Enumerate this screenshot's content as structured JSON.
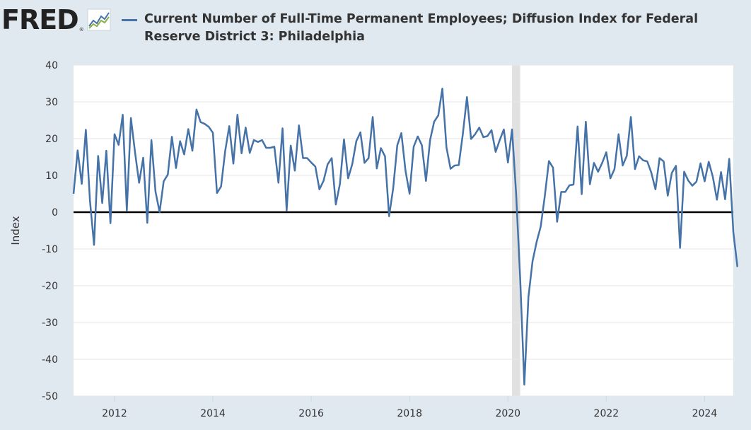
{
  "header": {
    "logo_text": "FRED",
    "logo_mark": "®",
    "logo_icon": "trend-chart-icon",
    "series_title": "Current Number of Full-Time Permanent Employees; Diffusion Index for Federal Reserve District 3: Philadelphia"
  },
  "colors": {
    "background": "#e1e9f0",
    "plot": "#ffffff",
    "series": "#4572a7",
    "recession": "#e1e1e1",
    "zero_line": "#000000"
  },
  "chart_data": {
    "type": "line",
    "title": "Current Number of Full-Time Permanent Employees; Diffusion Index for Federal Reserve District 3: Philadelphia",
    "xlabel": "",
    "ylabel": "Index",
    "ylim": [
      -50,
      40
    ],
    "yticks": [
      40,
      30,
      20,
      10,
      0,
      -10,
      -20,
      -30,
      -40,
      -50
    ],
    "xlim": [
      "2011-03",
      "2024-08"
    ],
    "xticks": [
      "2012",
      "2014",
      "2016",
      "2018",
      "2020",
      "2022",
      "2024"
    ],
    "grid": "horizontal",
    "zero_line": true,
    "recession_shading": [
      {
        "start": "2020-02",
        "end": "2020-04"
      }
    ],
    "series": [
      {
        "name": "",
        "frequency": "monthly",
        "start": "2011-03",
        "values": [
          5.0,
          16.8,
          7.7,
          22.4,
          3.2,
          -8.9,
          15.3,
          2.5,
          16.7,
          -3.0,
          21.2,
          18.3,
          26.5,
          0.5,
          25.6,
          16.3,
          8.0,
          14.8,
          -2.9,
          19.6,
          5.6,
          0.0,
          8.4,
          10.2,
          20.5,
          12.0,
          19.3,
          15.7,
          22.6,
          16.7,
          27.9,
          24.5,
          24.0,
          23.2,
          21.6,
          5.2,
          7.0,
          16.6,
          23.4,
          13.2,
          26.5,
          16.0,
          23.0,
          16.1,
          19.6,
          19.1,
          19.6,
          17.5,
          17.5,
          17.8,
          8.0,
          22.8,
          0.5,
          18.1,
          11.3,
          23.6,
          14.7,
          14.7,
          13.5,
          12.4,
          6.2,
          8.5,
          13.0,
          14.7,
          2.1,
          7.7,
          19.8,
          9.2,
          13.0,
          19.3,
          21.7,
          13.4,
          14.7,
          25.9,
          11.9,
          17.4,
          15.2,
          -1.1,
          6.5,
          18.2,
          21.5,
          11.3,
          5.0,
          17.8,
          20.6,
          18.2,
          8.5,
          19.6,
          24.6,
          26.3,
          33.6,
          17.6,
          11.8,
          12.7,
          12.8,
          21.3,
          31.3,
          19.9,
          21.2,
          23.0,
          20.4,
          20.7,
          22.3,
          16.4,
          19.6,
          22.5,
          13.5,
          22.5,
          5.0,
          -18.3,
          -46.9,
          -23.1,
          -13.4,
          -8.1,
          -3.9,
          4.4,
          13.9,
          12.1,
          -2.6,
          5.5,
          5.5,
          7.3,
          7.5,
          23.3,
          4.9,
          24.6,
          7.6,
          13.4,
          11.0,
          13.4,
          16.3,
          9.2,
          11.7,
          21.2,
          12.7,
          15.3,
          25.9,
          11.7,
          15.2,
          14.1,
          13.8,
          10.7,
          6.2,
          14.7,
          13.8,
          4.5,
          10.7,
          12.6,
          -9.7,
          11.0,
          8.6,
          7.2,
          8.3,
          13.3,
          8.4,
          13.7,
          9.6,
          3.4,
          10.9,
          3.5,
          14.5,
          -5.4,
          -14.9
        ]
      }
    ]
  }
}
